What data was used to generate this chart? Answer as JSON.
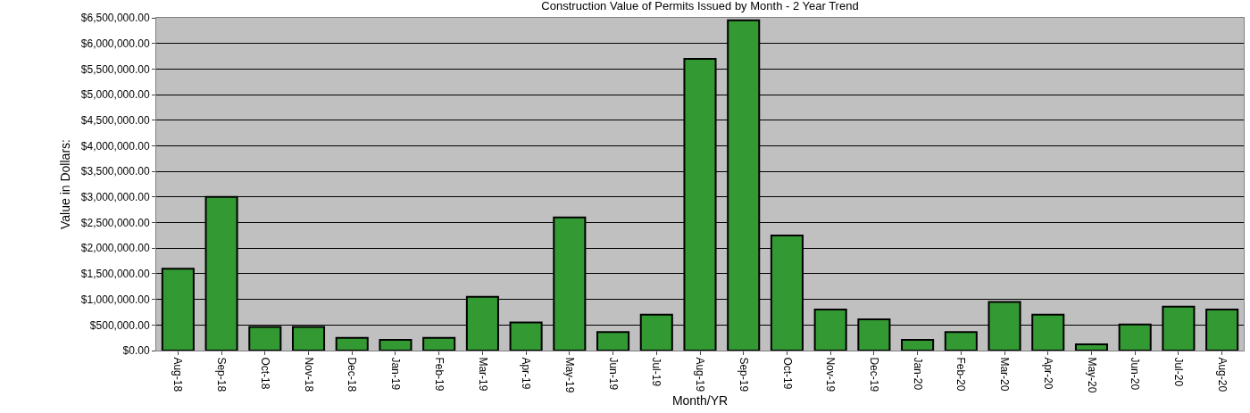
{
  "chart_data": {
    "type": "bar",
    "title": "Construction Value of Permits Issued by Month - 2 Year Trend",
    "xlabel": "Month/YR",
    "ylabel": "Value in Dollars:",
    "categories": [
      "Aug-18",
      "Sep-18",
      "Oct-18",
      "Nov-18",
      "Dec-18",
      "Jan-19",
      "Feb-19",
      "Mar-19",
      "Apr-19",
      "May-19",
      "Jun-19",
      "Jul-19",
      "Aug-19",
      "Sep-19",
      "Oct-19",
      "Nov-19",
      "Dec-19",
      "Jan-20",
      "Feb-20",
      "Mar-20",
      "Apr-20",
      "May-20",
      "Jun-20",
      "Jul-20",
      "Aug-20"
    ],
    "values": [
      1600000,
      3000000,
      460000,
      460000,
      250000,
      210000,
      250000,
      1050000,
      550000,
      2600000,
      360000,
      700000,
      5700000,
      6450000,
      2250000,
      800000,
      610000,
      210000,
      360000,
      950000,
      700000,
      120000,
      510000,
      860000,
      800000
    ],
    "color": "#339933",
    "ylim": [
      0,
      6500000
    ],
    "yticks": [
      {
        "value": 0,
        "label": "$0.00"
      },
      {
        "value": 500000,
        "label": "$500,000.00"
      },
      {
        "value": 1000000,
        "label": "$1,000,000.00"
      },
      {
        "value": 1500000,
        "label": "$1,500,000.00"
      },
      {
        "value": 2000000,
        "label": "$2,000,000.00"
      },
      {
        "value": 2500000,
        "label": "$2,500,000.00"
      },
      {
        "value": 3000000,
        "label": "$3,000,000.00"
      },
      {
        "value": 3500000,
        "label": "$3,500,000.00"
      },
      {
        "value": 4000000,
        "label": "$4,000,000.00"
      },
      {
        "value": 4500000,
        "label": "$4,500,000.00"
      },
      {
        "value": 5000000,
        "label": "$5,000,000.00"
      },
      {
        "value": 5500000,
        "label": "$5,500,000.00"
      },
      {
        "value": 6000000,
        "label": "$6,000,000.00"
      },
      {
        "value": 6500000,
        "label": "$6,500,000.00"
      }
    ],
    "grid": "y"
  }
}
